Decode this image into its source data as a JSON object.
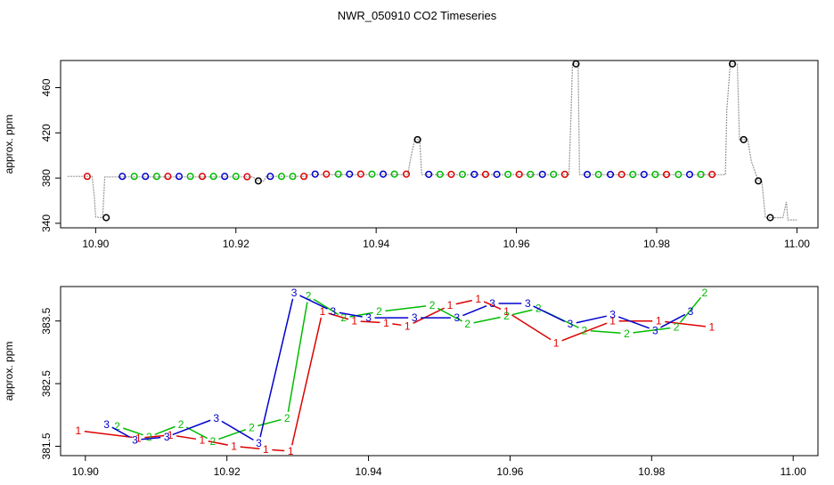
{
  "title": "NWR_050910  CO2 Timeseries",
  "colors": {
    "1": "#dd0000",
    "2": "#00bb00",
    "3": "#0000cc",
    "cal": "#000000",
    "raw": "#999999"
  },
  "chart_data": [
    {
      "type": "scatter",
      "ylabel": "approx. ppm",
      "xlim": [
        10.895,
        11.003
      ],
      "ylim": [
        336,
        484
      ],
      "xticks": [
        "10.90",
        "10.92",
        "10.94",
        "10.96",
        "10.98",
        "11.00"
      ],
      "yticks": [
        "340",
        "380",
        "420",
        "460"
      ],
      "raw_trace": [
        [
          10.896,
          381.5
        ],
        [
          10.8995,
          381.5
        ],
        [
          10.8998,
          364
        ],
        [
          10.9,
          345.5
        ],
        [
          10.901,
          345
        ],
        [
          10.9013,
          381
        ],
        [
          10.9225,
          381
        ],
        [
          10.9228,
          378
        ],
        [
          10.924,
          377.5
        ],
        [
          10.9243,
          381.5
        ],
        [
          10.93,
          381.5
        ],
        [
          10.9303,
          383
        ],
        [
          10.9445,
          383
        ],
        [
          10.945,
          400
        ],
        [
          10.9455,
          414
        ],
        [
          10.9462,
          414
        ],
        [
          10.9465,
          383
        ],
        [
          10.9675,
          383
        ],
        [
          10.9678,
          440
        ],
        [
          10.968,
          481
        ],
        [
          10.9688,
          481
        ],
        [
          10.969,
          383
        ],
        [
          10.9898,
          383
        ],
        [
          10.99,
          440
        ],
        [
          10.9905,
          481
        ],
        [
          10.9915,
          481
        ],
        [
          10.9918,
          414
        ],
        [
          10.993,
          414
        ],
        [
          10.9935,
          395
        ],
        [
          10.9945,
          377.5
        ],
        [
          10.995,
          377.5
        ],
        [
          10.9955,
          345
        ],
        [
          10.998,
          345
        ],
        [
          10.9985,
          359
        ],
        [
          10.9987,
          343
        ],
        [
          11.0,
          343
        ]
      ],
      "points": [
        {
          "x": 10.8988,
          "y": 381.5,
          "id": "1"
        },
        {
          "x": 10.9015,
          "y": 345,
          "id": "cal"
        },
        {
          "x": 10.9038,
          "y": 381.5,
          "id": "3"
        },
        {
          "x": 10.9055,
          "y": 381.5,
          "id": "2"
        },
        {
          "x": 10.9071,
          "y": 381.5,
          "id": "3"
        },
        {
          "x": 10.9087,
          "y": 381.5,
          "id": "2"
        },
        {
          "x": 10.9103,
          "y": 381.5,
          "id": "1"
        },
        {
          "x": 10.9119,
          "y": 381.5,
          "id": "3"
        },
        {
          "x": 10.9135,
          "y": 381.5,
          "id": "2"
        },
        {
          "x": 10.9152,
          "y": 381.5,
          "id": "1"
        },
        {
          "x": 10.9168,
          "y": 381.5,
          "id": "2"
        },
        {
          "x": 10.9184,
          "y": 381.5,
          "id": "3"
        },
        {
          "x": 10.92,
          "y": 381.5,
          "id": "2"
        },
        {
          "x": 10.9216,
          "y": 381.2,
          "id": "1"
        },
        {
          "x": 10.9232,
          "y": 377.5,
          "id": "cal"
        },
        {
          "x": 10.9249,
          "y": 381.5,
          "id": "3"
        },
        {
          "x": 10.9265,
          "y": 381.5,
          "id": "2"
        },
        {
          "x": 10.9281,
          "y": 381.5,
          "id": "2"
        },
        {
          "x": 10.9297,
          "y": 381.5,
          "id": "1"
        },
        {
          "x": 10.9313,
          "y": 383.5,
          "id": "3"
        },
        {
          "x": 10.9329,
          "y": 383.5,
          "id": "1"
        },
        {
          "x": 10.9346,
          "y": 383.5,
          "id": "2"
        },
        {
          "x": 10.9362,
          "y": 383.5,
          "id": "3"
        },
        {
          "x": 10.9378,
          "y": 383.5,
          "id": "1"
        },
        {
          "x": 10.9394,
          "y": 383.5,
          "id": "2"
        },
        {
          "x": 10.941,
          "y": 383.5,
          "id": "3"
        },
        {
          "x": 10.9426,
          "y": 383.5,
          "id": "2"
        },
        {
          "x": 10.9443,
          "y": 383.5,
          "id": "1"
        },
        {
          "x": 10.9459,
          "y": 414,
          "id": "cal"
        },
        {
          "x": 10.9475,
          "y": 383.3,
          "id": "3"
        },
        {
          "x": 10.9491,
          "y": 383.3,
          "id": "2"
        },
        {
          "x": 10.9507,
          "y": 383.3,
          "id": "1"
        },
        {
          "x": 10.9523,
          "y": 383.3,
          "id": "2"
        },
        {
          "x": 10.954,
          "y": 383.3,
          "id": "3"
        },
        {
          "x": 10.9556,
          "y": 383.3,
          "id": "1"
        },
        {
          "x": 10.9572,
          "y": 383.3,
          "id": "3"
        },
        {
          "x": 10.9588,
          "y": 383.3,
          "id": "2"
        },
        {
          "x": 10.9604,
          "y": 383.3,
          "id": "1"
        },
        {
          "x": 10.962,
          "y": 383.3,
          "id": "2"
        },
        {
          "x": 10.9637,
          "y": 383.3,
          "id": "3"
        },
        {
          "x": 10.9653,
          "y": 383.3,
          "id": "2"
        },
        {
          "x": 10.9669,
          "y": 383.3,
          "id": "1"
        },
        {
          "x": 10.9685,
          "y": 481,
          "id": "cal"
        },
        {
          "x": 10.9701,
          "y": 383.2,
          "id": "3"
        },
        {
          "x": 10.9717,
          "y": 383.2,
          "id": "2"
        },
        {
          "x": 10.9734,
          "y": 383.2,
          "id": "3"
        },
        {
          "x": 10.975,
          "y": 383.2,
          "id": "1"
        },
        {
          "x": 10.9766,
          "y": 383.2,
          "id": "2"
        },
        {
          "x": 10.9782,
          "y": 383.2,
          "id": "3"
        },
        {
          "x": 10.9798,
          "y": 383.2,
          "id": "2"
        },
        {
          "x": 10.9814,
          "y": 383.2,
          "id": "1"
        },
        {
          "x": 10.9831,
          "y": 383.2,
          "id": "2"
        },
        {
          "x": 10.9847,
          "y": 383.2,
          "id": "3"
        },
        {
          "x": 10.9863,
          "y": 383.2,
          "id": "2"
        },
        {
          "x": 10.9879,
          "y": 383.2,
          "id": "1"
        },
        {
          "x": 10.9908,
          "y": 481,
          "id": "cal"
        },
        {
          "x": 10.9924,
          "y": 414,
          "id": "cal"
        },
        {
          "x": 10.9945,
          "y": 377.5,
          "id": "cal"
        },
        {
          "x": 10.9962,
          "y": 345,
          "id": "cal"
        }
      ]
    },
    {
      "type": "line",
      "ylabel": "approx. ppm",
      "xlim": [
        10.8965,
        11.0035
      ],
      "ylim": [
        381.35,
        384.05
      ],
      "xticks": [
        "10.90",
        "10.92",
        "10.94",
        "10.96",
        "10.98",
        "11.00"
      ],
      "yticks": [
        "381.5",
        "382.5",
        "383.5"
      ],
      "series": [
        {
          "id": "1",
          "points": [
            [
              10.899,
              381.75
            ],
            [
              10.9075,
              381.63
            ],
            [
              10.912,
              381.68
            ],
            [
              10.9165,
              381.6
            ],
            [
              10.921,
              381.5
            ],
            [
              10.9255,
              381.45
            ],
            [
              10.929,
              381.42
            ],
            [
              10.9335,
              383.65
            ],
            [
              10.938,
              383.5
            ],
            [
              10.9425,
              383.47
            ],
            [
              10.9455,
              383.42
            ],
            [
              10.9515,
              383.75
            ],
            [
              10.9555,
              383.85
            ],
            [
              10.9595,
              383.65
            ],
            [
              10.9665,
              383.15
            ],
            [
              10.9745,
              383.5
            ],
            [
              10.981,
              383.5
            ],
            [
              10.9885,
              383.4
            ]
          ]
        },
        {
          "id": "2",
          "points": [
            [
              10.9045,
              381.82
            ],
            [
              10.909,
              381.65
            ],
            [
              10.9135,
              381.85
            ],
            [
              10.918,
              381.58
            ],
            [
              10.9235,
              381.8
            ],
            [
              10.9285,
              381.95
            ],
            [
              10.9315,
              383.9
            ],
            [
              10.9365,
              383.55
            ],
            [
              10.9415,
              383.65
            ],
            [
              10.949,
              383.75
            ],
            [
              10.954,
              383.45
            ],
            [
              10.9595,
              383.58
            ],
            [
              10.964,
              383.7
            ],
            [
              10.9705,
              383.35
            ],
            [
              10.9765,
              383.3
            ],
            [
              10.9835,
              383.4
            ],
            [
              10.9875,
              383.95
            ]
          ]
        },
        {
          "id": "3",
          "points": [
            [
              10.903,
              381.85
            ],
            [
              10.907,
              381.6
            ],
            [
              10.9115,
              381.65
            ],
            [
              10.9185,
              381.95
            ],
            [
              10.9245,
              381.55
            ],
            [
              10.9295,
              383.95
            ],
            [
              10.935,
              383.65
            ],
            [
              10.94,
              383.55
            ],
            [
              10.9465,
              383.55
            ],
            [
              10.9525,
              383.55
            ],
            [
              10.9575,
              383.78
            ],
            [
              10.9625,
              383.78
            ],
            [
              10.9685,
              383.45
            ],
            [
              10.9745,
              383.6
            ],
            [
              10.9805,
              383.35
            ],
            [
              10.9855,
              383.65
            ]
          ]
        }
      ]
    }
  ]
}
